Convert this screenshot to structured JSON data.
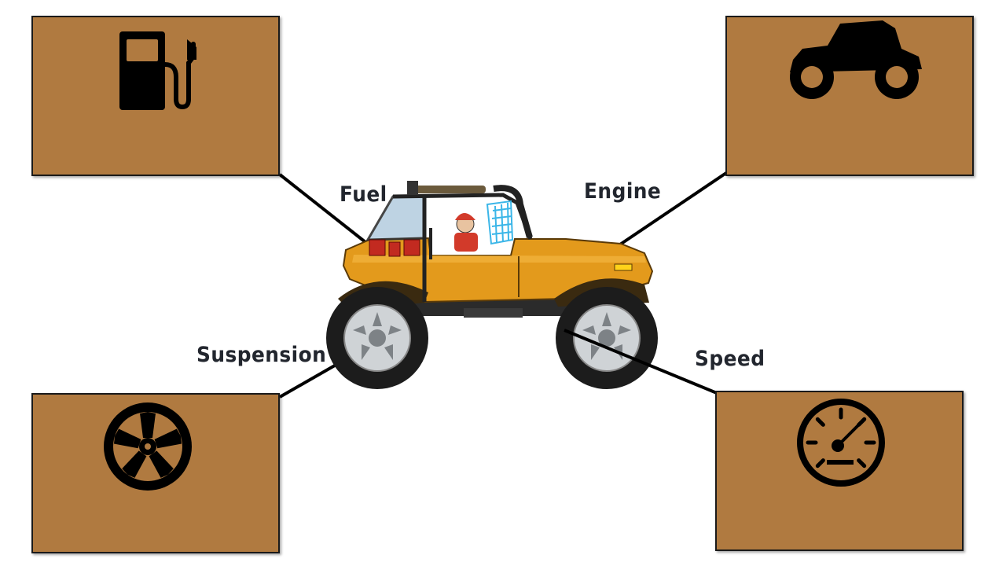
{
  "upgrades": [
    {
      "id": "fuel",
      "label": "Fuel",
      "icon": "fuel-pump-icon"
    },
    {
      "id": "engine",
      "label": "Engine",
      "icon": "vehicle-silhouette-icon"
    },
    {
      "id": "suspension",
      "label": "Suspension",
      "icon": "wheel-rim-icon"
    },
    {
      "id": "speed",
      "label": "Speed",
      "icon": "speedometer-icon"
    }
  ],
  "colors": {
    "panel": "#b07a40",
    "panel_border": "#1a1a1a",
    "label_text": "#22262e",
    "vehicle_body": "#e39a1c",
    "roll_cage_net": "#3bb6e8",
    "driver_cap": "#d23a2a"
  }
}
